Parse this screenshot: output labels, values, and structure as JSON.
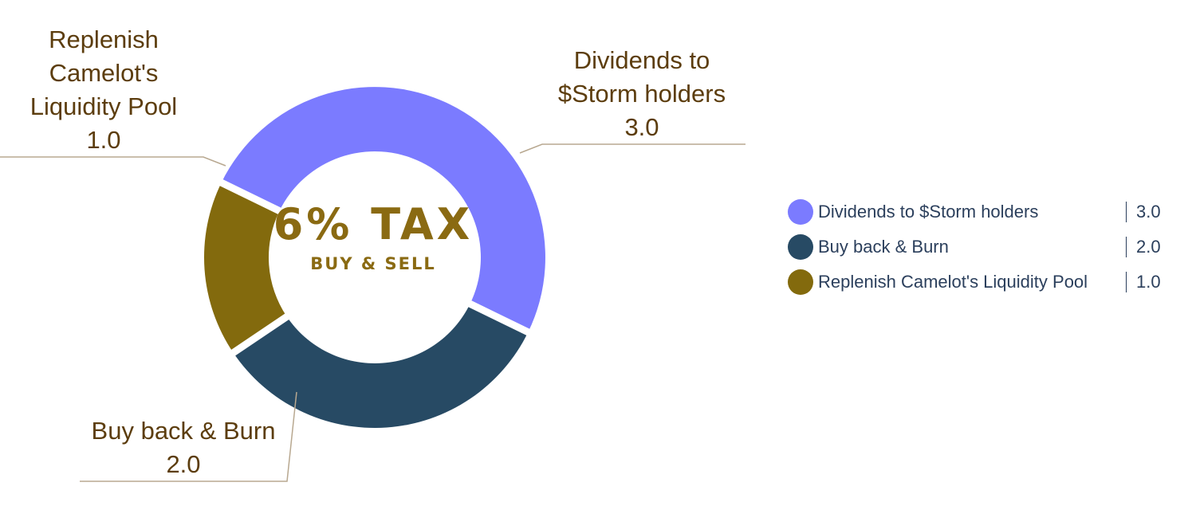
{
  "chart_data": {
    "type": "pie",
    "donut": true,
    "center_title": "6% TAX",
    "center_subtitle": "BUY & SELL",
    "slices": [
      {
        "label": "Dividends to $Storm holders",
        "value": 3.0,
        "value_label": "3.0",
        "color": "#7b7bff",
        "callout_lines": [
          "Dividends to",
          "$Storm holders"
        ]
      },
      {
        "label": "Buy back & Burn",
        "value": 2.0,
        "value_label": "2.0",
        "color": "#274a64",
        "callout_lines": [
          "Buy back & Burn"
        ]
      },
      {
        "label": "Replenish Camelot's Liquidity Pool",
        "value": 1.0,
        "value_label": "1.0",
        "color": "#836a0d",
        "callout_lines": [
          "Replenish",
          "Camelot's",
          "Liquidity Pool"
        ]
      }
    ],
    "legend_position": "right"
  }
}
